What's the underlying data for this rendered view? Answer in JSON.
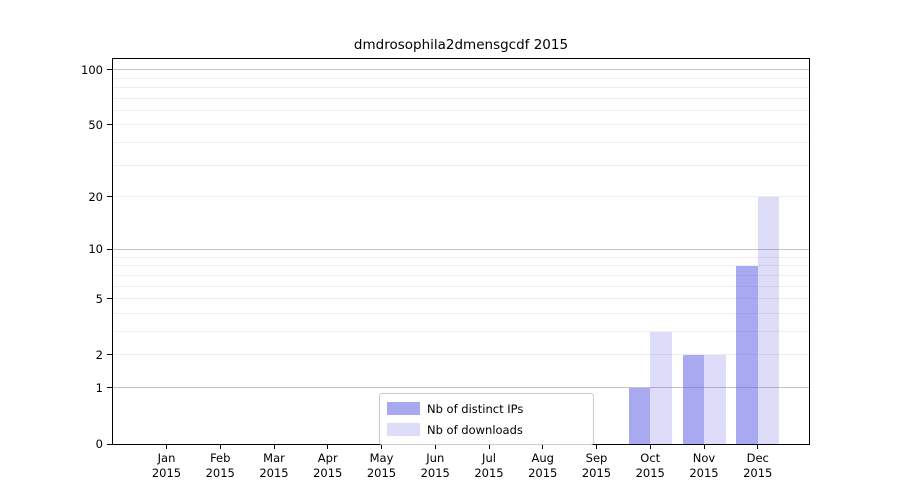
{
  "chart_data": {
    "type": "bar",
    "title": "dmdrosophila2dmensgcdf 2015",
    "categories": [
      "Jan 2015",
      "Feb 2015",
      "Mar 2015",
      "Apr 2015",
      "May 2015",
      "Jun 2015",
      "Jul 2015",
      "Aug 2015",
      "Sep 2015",
      "Oct 2015",
      "Nov 2015",
      "Dec 2015"
    ],
    "series": [
      {
        "name": "Nb of distinct IPs",
        "color": "#5353e5",
        "alpha": 0.5,
        "values": [
          0,
          0,
          0,
          0,
          0,
          0,
          0,
          0,
          0,
          1,
          2,
          8
        ]
      },
      {
        "name": "Nb of downloads",
        "color": "#5353e5",
        "alpha": 0.2,
        "values": [
          0,
          0,
          0,
          0,
          0,
          0,
          0,
          0,
          0,
          3,
          2,
          20
        ]
      }
    ],
    "yscale": "log1p",
    "yticks": [
      0,
      1,
      2,
      5,
      10,
      20,
      50,
      100
    ],
    "yticklabels": [
      "0",
      "1",
      "2",
      "5",
      "10",
      "20",
      "50",
      "100"
    ],
    "ylim": [
      0,
      114
    ],
    "grid": {
      "major_lines": [
        1,
        10,
        100
      ],
      "minor_lines": [
        2,
        3,
        4,
        5,
        6,
        7,
        8,
        9,
        20,
        30,
        40,
        50,
        60,
        70,
        80,
        90
      ],
      "major_color": "#c4c4c4",
      "minor_color": "#ededed"
    },
    "legend": {
      "position": "lower-center"
    },
    "axis_color": "#000000",
    "background": "#ffffff"
  }
}
